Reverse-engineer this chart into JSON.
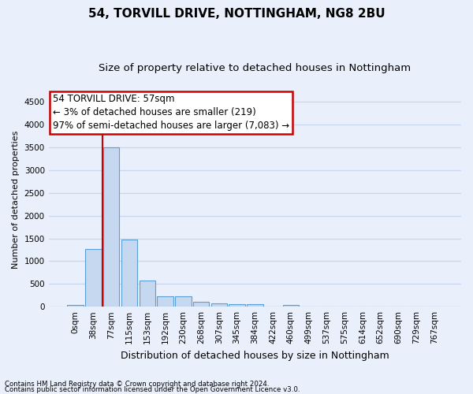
{
  "title1": "54, TORVILL DRIVE, NOTTINGHAM, NG8 2BU",
  "title2": "Size of property relative to detached houses in Nottingham",
  "xlabel": "Distribution of detached houses by size in Nottingham",
  "ylabel": "Number of detached properties",
  "categories": [
    "0sqm",
    "38sqm",
    "77sqm",
    "115sqm",
    "153sqm",
    "192sqm",
    "230sqm",
    "268sqm",
    "307sqm",
    "345sqm",
    "384sqm",
    "422sqm",
    "460sqm",
    "499sqm",
    "537sqm",
    "575sqm",
    "614sqm",
    "652sqm",
    "690sqm",
    "729sqm",
    "767sqm"
  ],
  "values": [
    30,
    1270,
    3500,
    1470,
    580,
    230,
    230,
    110,
    80,
    60,
    50,
    0,
    40,
    0,
    0,
    0,
    0,
    0,
    0,
    0,
    0
  ],
  "bar_color": "#c5d8f0",
  "bar_edge_color": "#5a9fd4",
  "vline_x_bar_index": 2,
  "marker_label1": "54 TORVILL DRIVE: 57sqm",
  "marker_label2": "← 3% of detached houses are smaller (219)",
  "marker_label3": "97% of semi-detached houses are larger (7,083) →",
  "annotation_box_facecolor": "#ffffff",
  "annotation_box_edgecolor": "#cc0000",
  "vline_color": "#cc0000",
  "ylim": [
    0,
    4700
  ],
  "yticks": [
    0,
    500,
    1000,
    1500,
    2000,
    2500,
    3000,
    3500,
    4000,
    4500
  ],
  "footnote1": "Contains HM Land Registry data © Crown copyright and database right 2024.",
  "footnote2": "Contains public sector information licensed under the Open Government Licence v3.0.",
  "bg_color": "#eaf0fb",
  "plot_bg_color": "#eaf0fb",
  "grid_color": "#c8d8ef",
  "title1_fontsize": 11,
  "title2_fontsize": 9.5,
  "ylabel_fontsize": 8,
  "xlabel_fontsize": 9,
  "tick_fontsize": 7.5,
  "annot_fontsize": 8.5
}
